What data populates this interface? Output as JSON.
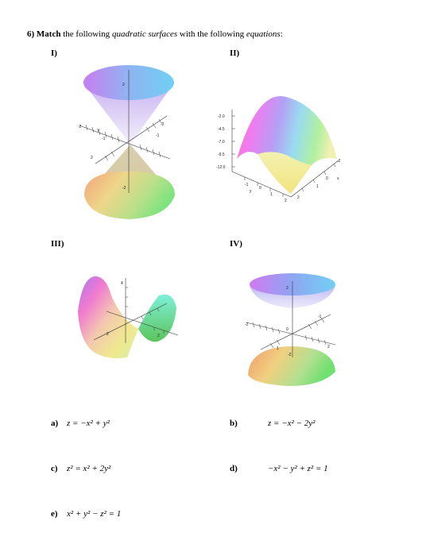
{
  "question": {
    "number": "6)",
    "verb": "Match",
    "text1": " the following ",
    "italic1": "quadratic surfaces",
    "text2": " with the following ",
    "italic2": "equations",
    "text3": ":"
  },
  "plots": [
    {
      "label": "I)"
    },
    {
      "label": "II)"
    },
    {
      "label": "III)"
    },
    {
      "label": "IV)"
    }
  ],
  "plot1_ticks": {
    "z2": "2",
    "x_m1": "-1",
    "y": "Y",
    "x_m2": "-2",
    "m2": "-2",
    "p2": "2",
    "m1": "-1",
    "zm2": "-2"
  },
  "plot2_ticks": {
    "z1": "-2.0",
    "z2": "-4.5",
    "z3": "-7.0",
    "z4": "-9.5",
    "z5": "-12.0",
    "y": "y",
    "ym1": "-1",
    "y0": "0",
    "y1": "1",
    "y2": "2",
    "x2a": "2",
    "x1": "1",
    "x0": "0",
    "x": "x",
    "xm2": "-2"
  },
  "plot3_ticks": {
    "z4": "4",
    "y2": "2",
    "x2": "2"
  },
  "plot4_ticks": {
    "z2": "2",
    "ym2": "-2",
    "xm1": "-1",
    "z0": "0",
    "y1": "1",
    "x2": "2",
    "zm2": "-2"
  },
  "equations": [
    {
      "letter": "a)",
      "expr": "z = −x² + y²"
    },
    {
      "letter": "b)",
      "expr": "z = −x² − 2y²"
    },
    {
      "letter": "c)",
      "expr": "z² = x² + 2y²"
    },
    {
      "letter": "d)",
      "expr": "−x² − y² + z² = 1"
    },
    {
      "letter": "e)",
      "expr": "x² + y² − z² = 1"
    }
  ]
}
